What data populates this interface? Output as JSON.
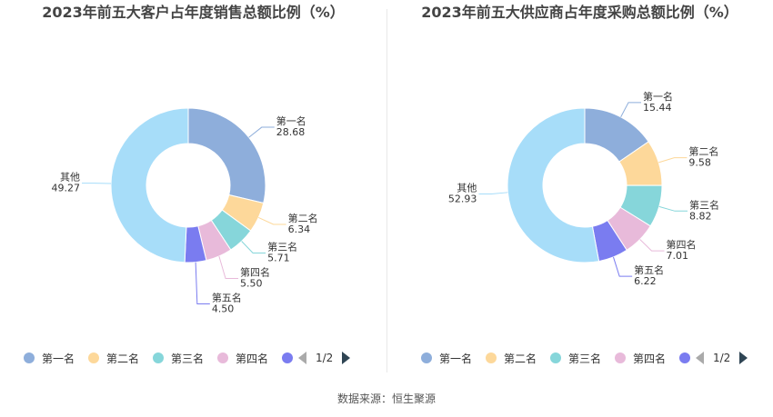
{
  "chart_data": [
    {
      "type": "pie",
      "title": "2023年前五大客户占年度销售总额比例（%）",
      "slices": [
        {
          "name": "第一名",
          "value": 28.68,
          "label": "28.68",
          "color": "#8eaedb"
        },
        {
          "name": "第二名",
          "value": 6.34,
          "label": "6.34",
          "color": "#fdd89a"
        },
        {
          "name": "第三名",
          "value": 5.71,
          "label": "5.71",
          "color": "#86d6da"
        },
        {
          "name": "第四名",
          "value": 5.5,
          "label": "5.50",
          "color": "#e8bada"
        },
        {
          "name": "第五名",
          "value": 4.5,
          "label": "4.50",
          "color": "#7a7cf0"
        },
        {
          "name": "其他",
          "value": 49.27,
          "label": "49.27",
          "color": "#a7ddf9"
        }
      ],
      "legend": {
        "placement": "bottom",
        "items": [
          "第一名",
          "第二名",
          "第三名",
          "第四名",
          "第五名"
        ],
        "page": "1/2"
      }
    },
    {
      "type": "pie",
      "title": "2023年前五大供应商占年度采购总额比例（%）",
      "slices": [
        {
          "name": "第一名",
          "value": 15.44,
          "label": "15.44",
          "color": "#8eaedb"
        },
        {
          "name": "第二名",
          "value": 9.58,
          "label": "9.58",
          "color": "#fdd89a"
        },
        {
          "name": "第三名",
          "value": 8.82,
          "label": "8.82",
          "color": "#86d6da"
        },
        {
          "name": "第四名",
          "value": 7.01,
          "label": "7.01",
          "color": "#e8bada"
        },
        {
          "name": "第五名",
          "value": 6.22,
          "label": "6.22",
          "color": "#7a7cf0"
        },
        {
          "name": "其他",
          "value": 52.93,
          "label": "52.93",
          "color": "#a7ddf9"
        }
      ],
      "legend": {
        "placement": "bottom",
        "items": [
          "第一名",
          "第二名",
          "第三名",
          "第四名",
          "第五名"
        ],
        "page": "1/2"
      }
    }
  ],
  "footer": {
    "source": "数据来源：恒生聚源"
  }
}
